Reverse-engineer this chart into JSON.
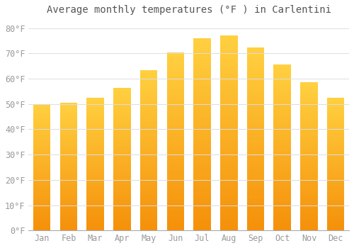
{
  "title": "Average monthly temperatures (°F ) in Carlentini",
  "months": [
    "Jan",
    "Feb",
    "Mar",
    "Apr",
    "May",
    "Jun",
    "Jul",
    "Aug",
    "Sep",
    "Oct",
    "Nov",
    "Dec"
  ],
  "values": [
    50.0,
    50.5,
    52.5,
    56.5,
    63.5,
    70.5,
    76.0,
    77.0,
    72.5,
    65.5,
    58.5,
    52.5
  ],
  "bar_color_top": "#FFD040",
  "bar_color_bottom": "#F5900A",
  "background_color": "#FFFFFF",
  "grid_color": "#DDDDDD",
  "yticks": [
    0,
    10,
    20,
    30,
    40,
    50,
    60,
    70,
    80
  ],
  "ylim": [
    0,
    83
  ],
  "title_fontsize": 10,
  "tick_fontsize": 8.5,
  "tick_color": "#999999",
  "title_color": "#555555"
}
